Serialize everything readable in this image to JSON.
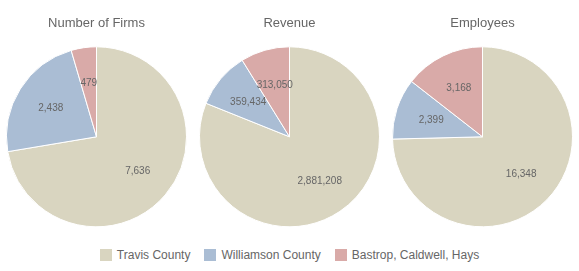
{
  "chart_data": [
    {
      "type": "pie",
      "title": "Number of Firms",
      "categories": [
        "Travis County",
        "Williamson County",
        "Bastrop, Caldwell, Hays"
      ],
      "values": [
        7636,
        2438,
        479
      ],
      "value_labels": [
        "7,636",
        "2,438",
        "479"
      ],
      "colors": [
        "#d9d5c0",
        "#aabdd4",
        "#d9aaa8"
      ],
      "data_labels": true,
      "legend": "bottom"
    },
    {
      "type": "pie",
      "title": "Revenue",
      "categories": [
        "Travis County",
        "Williamson County",
        "Bastrop, Caldwell, Hays"
      ],
      "values": [
        2881208,
        359434,
        313050
      ],
      "value_labels": [
        "2,881,208",
        "359,434",
        "313,050"
      ],
      "colors": [
        "#d9d5c0",
        "#aabdd4",
        "#d9aaa8"
      ],
      "data_labels": true,
      "legend": "bottom"
    },
    {
      "type": "pie",
      "title": "Employees",
      "categories": [
        "Travis County",
        "Williamson County",
        "Bastrop, Caldwell, Hays"
      ],
      "values": [
        16348,
        2399,
        3168
      ],
      "value_labels": [
        "16,348",
        "2,399",
        "3,168"
      ],
      "colors": [
        "#d9d5c0",
        "#aabdd4",
        "#d9aaa8"
      ],
      "data_labels": true,
      "legend": "bottom"
    }
  ]
}
